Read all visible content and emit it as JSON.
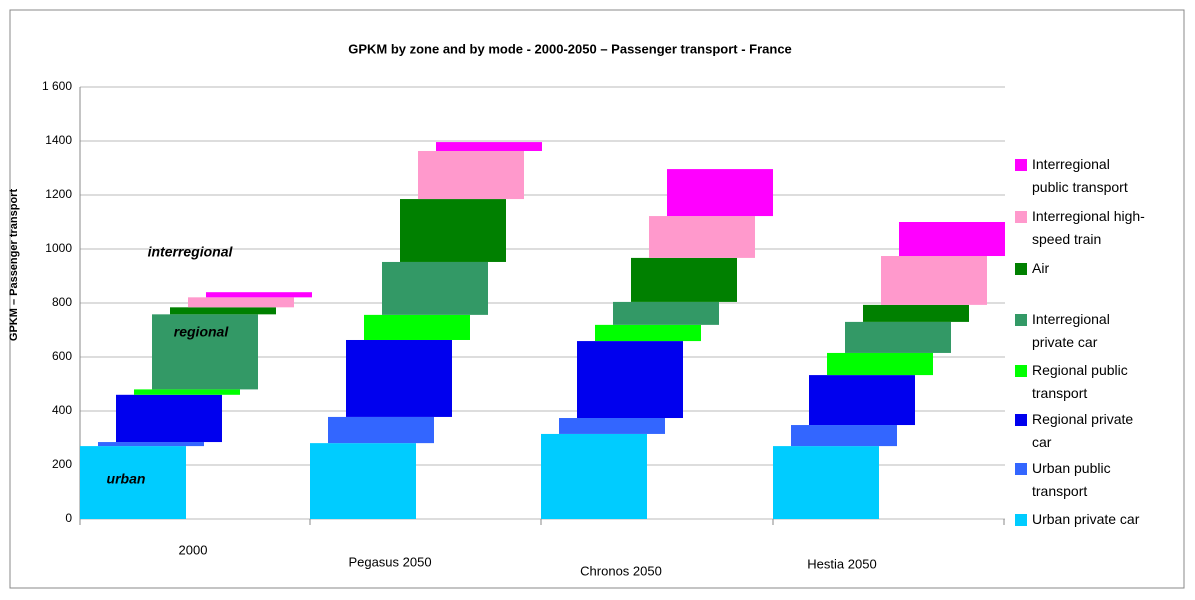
{
  "chart_data": {
    "type": "stacked-offset-bar",
    "title": "GPKM by zone and by mode - 2000-2050 – Passenger transport - France",
    "y_label": "GPKM – Passenger transport",
    "annotations": [
      "urban",
      "regional",
      "interregional"
    ],
    "categories": [
      "2000",
      "Pegasus 2050",
      "Chronos 2050",
      "Hestia 2050"
    ],
    "series": [
      {
        "name": "Urban private car",
        "color": "#00ccff",
        "values": [
          270,
          281,
          315,
          270
        ]
      },
      {
        "name": "Urban public transport",
        "color": "#3366ff",
        "values": [
          15,
          97,
          59,
          78
        ]
      },
      {
        "name": "Regional private car",
        "color": "#0000ee",
        "values": [
          175,
          285,
          285,
          185
        ]
      },
      {
        "name": "Regional public transport",
        "color": "#00ff00",
        "values": [
          20,
          93,
          60,
          82
        ]
      },
      {
        "name": "Interregional private car",
        "color": "#339966",
        "values": [
          278,
          196,
          85,
          115
        ]
      },
      {
        "name": "Air",
        "color": "#008000",
        "values": [
          26,
          233,
          163,
          63
        ]
      },
      {
        "name": "Interregional high-speed train",
        "color": "#ff99cc",
        "values": [
          37,
          178,
          155,
          181
        ]
      },
      {
        "name": "Interregional public transport",
        "color": "#ff00ff",
        "values": [
          19,
          33,
          174,
          126
        ]
      }
    ],
    "ylim": [
      0,
      1600
    ],
    "yticks": [
      0,
      200,
      400,
      600,
      800,
      1000,
      1200,
      1400,
      {
        "value": 1600,
        "label": "1 600"
      }
    ],
    "grid": true
  }
}
